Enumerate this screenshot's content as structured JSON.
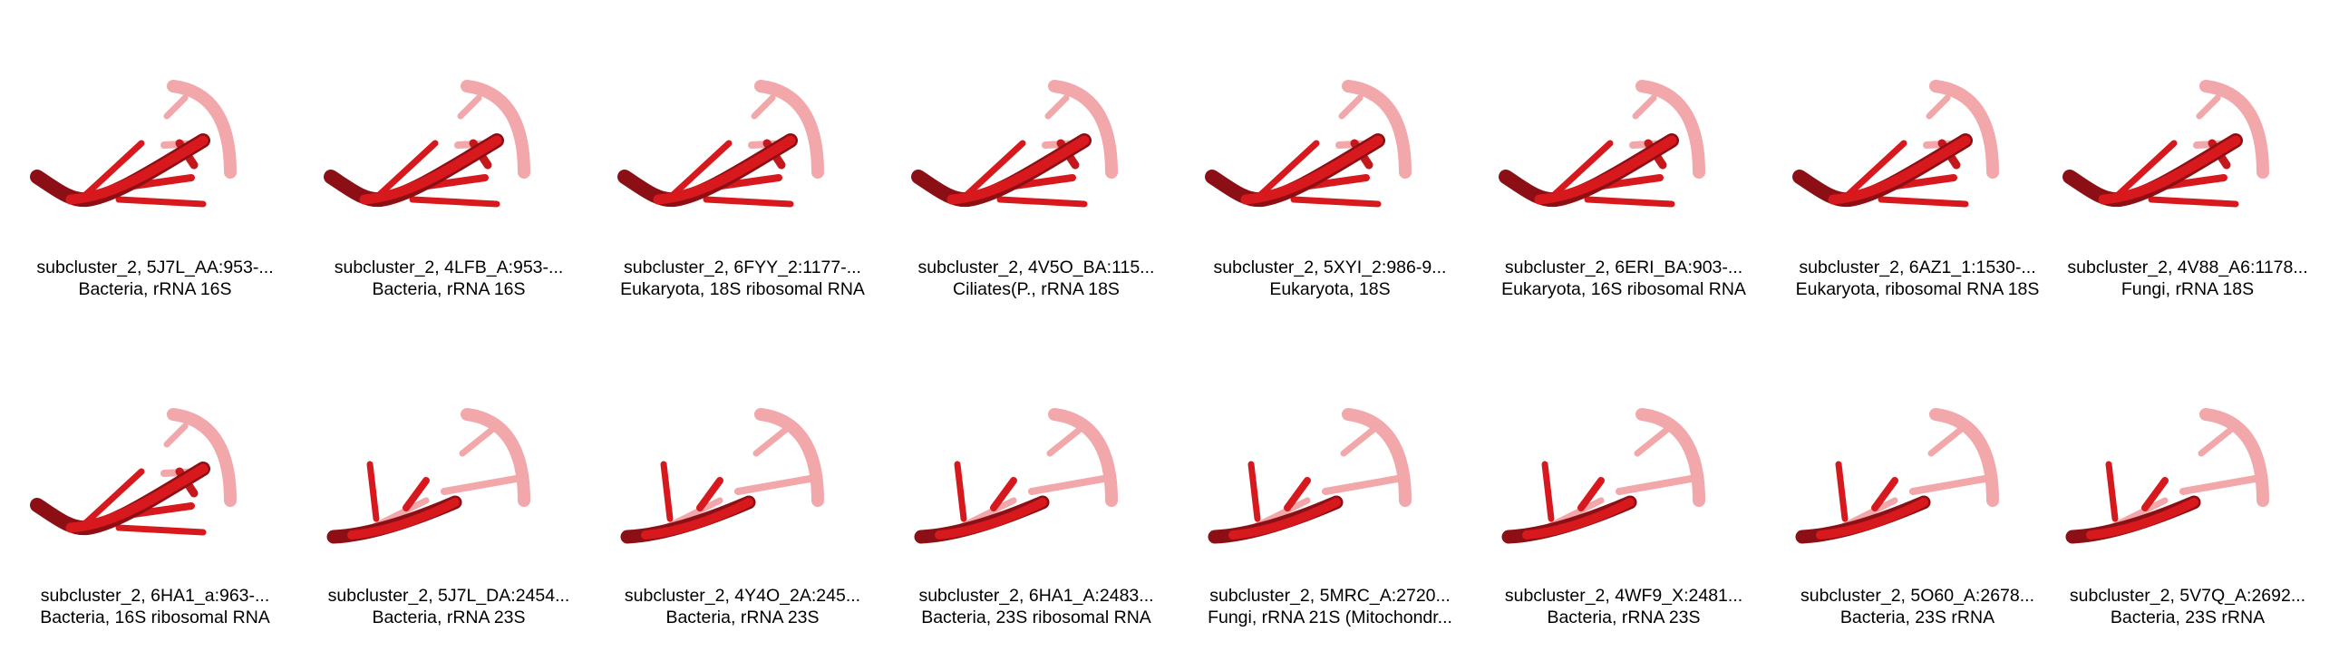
{
  "colors": {
    "background": "#ffffff",
    "text": "#000000",
    "strand_dark": "#8b0f14",
    "strand_mid": "#d7181c",
    "strand_light": "#f2a7aa"
  },
  "items": [
    {
      "title": "subcluster_2, 5J7L_AA:953-...",
      "subtitle": "Bacteria, rRNA 16S",
      "icon": "rna-3d-structure-icon",
      "shape": "a"
    },
    {
      "title": "subcluster_2, 4LFB_A:953-...",
      "subtitle": "Bacteria, rRNA 16S",
      "icon": "rna-3d-structure-icon",
      "shape": "a"
    },
    {
      "title": "subcluster_2, 6FYY_2:1177-...",
      "subtitle": "Eukaryota, 18S ribosomal RNA",
      "icon": "rna-3d-structure-icon",
      "shape": "a"
    },
    {
      "title": "subcluster_2, 4V5O_BA:115...",
      "subtitle": "Ciliates(P., rRNA 18S",
      "icon": "rna-3d-structure-icon",
      "shape": "a"
    },
    {
      "title": "subcluster_2, 5XYI_2:986-9...",
      "subtitle": "Eukaryota, 18S",
      "icon": "rna-3d-structure-icon",
      "shape": "a"
    },
    {
      "title": "subcluster_2, 6ERI_BA:903-...",
      "subtitle": "Eukaryota, 16S ribosomal RNA",
      "icon": "rna-3d-structure-icon",
      "shape": "a"
    },
    {
      "title": "subcluster_2, 6AZ1_1:1530-...",
      "subtitle": "Eukaryota, ribosomal RNA 18S",
      "icon": "rna-3d-structure-icon",
      "shape": "a"
    },
    {
      "title": "subcluster_2, 4V88_A6:1178...",
      "subtitle": "Fungi, rRNA 18S",
      "icon": "rna-3d-structure-icon",
      "shape": "a"
    },
    {
      "title": "subcluster_2, 6HA1_a:963-...",
      "subtitle": "Bacteria, 16S ribosomal RNA",
      "icon": "rna-3d-structure-icon",
      "shape": "a"
    },
    {
      "title": "subcluster_2, 5J7L_DA:2454...",
      "subtitle": "Bacteria, rRNA 23S",
      "icon": "rna-3d-structure-icon",
      "shape": "b"
    },
    {
      "title": "subcluster_2, 4Y4O_2A:245...",
      "subtitle": "Bacteria, rRNA 23S",
      "icon": "rna-3d-structure-icon",
      "shape": "b"
    },
    {
      "title": "subcluster_2, 6HA1_A:2483...",
      "subtitle": "Bacteria, 23S ribosomal RNA",
      "icon": "rna-3d-structure-icon",
      "shape": "b"
    },
    {
      "title": "subcluster_2, 5MRC_A:2720...",
      "subtitle": "Fungi, rRNA 21S (Mitochondr...",
      "icon": "rna-3d-structure-icon",
      "shape": "b"
    },
    {
      "title": "subcluster_2, 4WF9_X:2481...",
      "subtitle": "Bacteria, rRNA 23S",
      "icon": "rna-3d-structure-icon",
      "shape": "b"
    },
    {
      "title": "subcluster_2, 5O60_A:2678...",
      "subtitle": "Bacteria, 23S rRNA",
      "icon": "rna-3d-structure-icon",
      "shape": "b"
    },
    {
      "title": "subcluster_2, 5V7Q_A:2692...",
      "subtitle": "Bacteria, 23S rRNA",
      "icon": "rna-3d-structure-icon",
      "shape": "b"
    }
  ]
}
